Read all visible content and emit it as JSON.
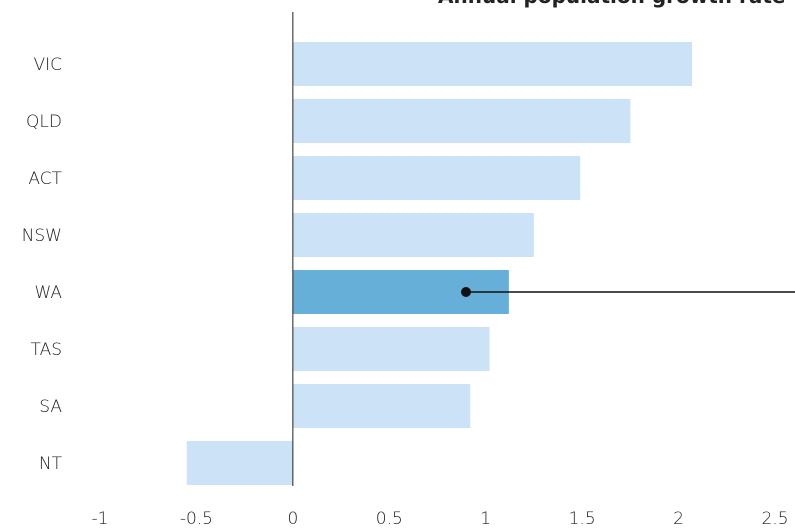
{
  "chart_data": {
    "type": "bar",
    "orientation": "horizontal",
    "title": "Annual population growth rate",
    "categories": [
      "VIC",
      "QLD",
      "ACT",
      "NSW",
      "WA",
      "TAS",
      "SA",
      "NT"
    ],
    "values": [
      2.07,
      1.75,
      1.49,
      1.25,
      1.12,
      1.02,
      0.92,
      -0.55
    ],
    "colors": [
      "#cce3f7",
      "#cce3f7",
      "#cce3f7",
      "#cce3f7",
      "#66afd9",
      "#cce3f7",
      "#cce3f7",
      "#cce3f7"
    ],
    "xlim": [
      -1,
      2.5
    ],
    "xticks": [
      -1,
      -0.5,
      0,
      0.5,
      1,
      1.5,
      2,
      2.5
    ]
  }
}
